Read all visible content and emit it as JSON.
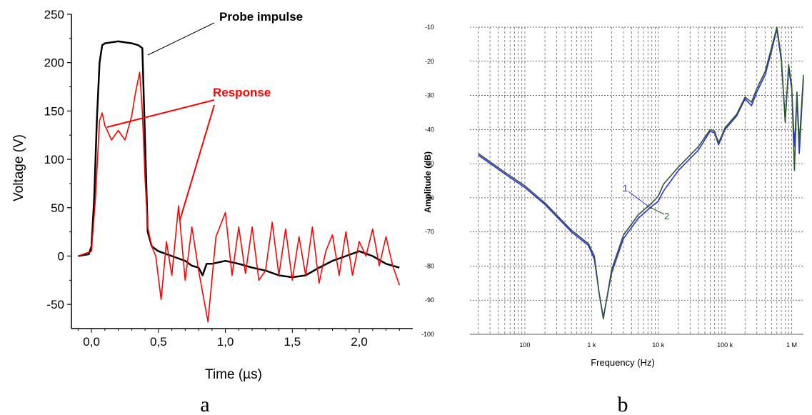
{
  "chart_data": [
    {
      "type": "line",
      "caption": "a",
      "xlabel": "Time (µs)",
      "ylabel": "Voltage (V)",
      "xlim": [
        -0.15,
        2.4
      ],
      "ylim": [
        -75,
        250
      ],
      "xticks": [
        0,
        0.5,
        1.0,
        1.5,
        2.0
      ],
      "xtick_labels": [
        "0,0",
        "0,5",
        "1,0",
        "1,5",
        "2,0"
      ],
      "yticks": [
        -50,
        0,
        50,
        100,
        150,
        200,
        250
      ],
      "ytick_labels": [
        "-50",
        "0",
        "50",
        "100",
        "150",
        "200",
        "250"
      ],
      "grid": false,
      "annotations": [
        "Probe impulse",
        "Response"
      ],
      "series": [
        {
          "name": "Probe impulse",
          "color": "#000000",
          "x": [
            -0.1,
            -0.02,
            0.0,
            0.02,
            0.04,
            0.06,
            0.08,
            0.1,
            0.2,
            0.3,
            0.35,
            0.38,
            0.4,
            0.42,
            0.45,
            0.5,
            0.6,
            0.7,
            0.75,
            0.8,
            0.83,
            0.86,
            0.9,
            1.0,
            1.1,
            1.2,
            1.3,
            1.4,
            1.5,
            1.6,
            1.7,
            1.8,
            1.9,
            2.0,
            2.1,
            2.2,
            2.3
          ],
          "y": [
            0,
            2,
            10,
            60,
            140,
            200,
            218,
            220,
            222,
            220,
            218,
            215,
            120,
            25,
            10,
            5,
            0,
            -5,
            -10,
            -12,
            -20,
            -8,
            -8,
            -5,
            -8,
            -12,
            -15,
            -20,
            -22,
            -20,
            -12,
            -5,
            0,
            5,
            0,
            -8,
            -12
          ]
        },
        {
          "name": "Response",
          "color": "#ff0000",
          "x": [
            -0.1,
            0.0,
            0.03,
            0.06,
            0.08,
            0.1,
            0.15,
            0.2,
            0.25,
            0.3,
            0.33,
            0.36,
            0.38,
            0.4,
            0.42,
            0.45,
            0.48,
            0.52,
            0.56,
            0.6,
            0.65,
            0.7,
            0.75,
            0.8,
            0.87,
            0.93,
            1.0,
            1.05,
            1.1,
            1.15,
            1.2,
            1.25,
            1.3,
            1.35,
            1.4,
            1.45,
            1.5,
            1.55,
            1.6,
            1.65,
            1.7,
            1.75,
            1.8,
            1.85,
            1.9,
            1.95,
            2.0,
            2.05,
            2.1,
            2.15,
            2.2,
            2.25,
            2.3
          ],
          "y": [
            0,
            5,
            60,
            140,
            148,
            135,
            120,
            130,
            120,
            145,
            170,
            190,
            150,
            80,
            30,
            10,
            0,
            -45,
            15,
            -20,
            52,
            -25,
            30,
            -15,
            -68,
            20,
            45,
            -20,
            30,
            -18,
            30,
            -25,
            -15,
            35,
            -20,
            28,
            -25,
            20,
            -20,
            30,
            -28,
            5,
            22,
            -20,
            25,
            -20,
            15,
            0,
            28,
            -10,
            20,
            -10,
            -30
          ]
        }
      ]
    },
    {
      "type": "line",
      "caption": "b",
      "xlabel": "Frequency (Hz)",
      "ylabel": "Amplitude (dB)",
      "x_scale": "log",
      "xlim": [
        15,
        1500000
      ],
      "ylim": [
        -100,
        -10
      ],
      "xticks": [
        100,
        1000,
        10000,
        100000,
        1000000
      ],
      "xtick_labels": [
        "100",
        "1 k",
        "10 k",
        "100 k",
        "1 M"
      ],
      "yticks": [
        -10,
        -20,
        -30,
        -40,
        -50,
        -60,
        -70,
        -80,
        -90,
        -100
      ],
      "ytick_labels": [
        "-10",
        "-20",
        "-30",
        "-40",
        "-50",
        "-60",
        "-70",
        "-80",
        "-90",
        "-100"
      ],
      "grid": true,
      "annotations": [
        "1",
        "2"
      ],
      "series": [
        {
          "name": "1",
          "color": "#2a2aff",
          "x": [
            20,
            50,
            100,
            200,
            500,
            900,
            1100,
            1300,
            1500,
            2000,
            3000,
            5000,
            8000,
            10000,
            12000,
            20000,
            40000,
            60000,
            70000,
            80000,
            100000,
            150000,
            200000,
            250000,
            300000,
            400000,
            500000,
            600000,
            700000,
            800000,
            900000,
            1000000,
            1100000,
            1200000,
            1300000,
            1500000
          ],
          "y": [
            -47.5,
            -53,
            -57,
            -62,
            -70,
            -74,
            -78,
            -88,
            -95,
            -82,
            -72,
            -66,
            -62.5,
            -61,
            -58,
            -52,
            -46,
            -40.5,
            -41,
            -44.5,
            -40,
            -36,
            -31,
            -33,
            -29,
            -24,
            -17,
            -10.5,
            -20,
            -37,
            -22,
            -28,
            -45,
            -30,
            -47,
            -25
          ]
        },
        {
          "name": "2",
          "color": "#2d5a2d",
          "x": [
            20,
            50,
            100,
            200,
            500,
            900,
            1100,
            1300,
            1500,
            2000,
            3000,
            5000,
            8000,
            10000,
            12000,
            20000,
            40000,
            60000,
            70000,
            80000,
            100000,
            150000,
            200000,
            250000,
            300000,
            400000,
            500000,
            600000,
            700000,
            800000,
            900000,
            1000000,
            1100000,
            1200000,
            1300000,
            1500000
          ],
          "y": [
            -47,
            -52.5,
            -56.5,
            -61.5,
            -69.5,
            -73.5,
            -77,
            -88,
            -95.5,
            -81,
            -71,
            -65,
            -61.5,
            -59.5,
            -56,
            -51,
            -45,
            -40,
            -40.5,
            -44,
            -39.5,
            -35.5,
            -30.5,
            -32,
            -28,
            -23,
            -16,
            -10,
            -19,
            -38,
            -21,
            -27,
            -52,
            -29,
            -44,
            -24
          ]
        }
      ]
    }
  ]
}
